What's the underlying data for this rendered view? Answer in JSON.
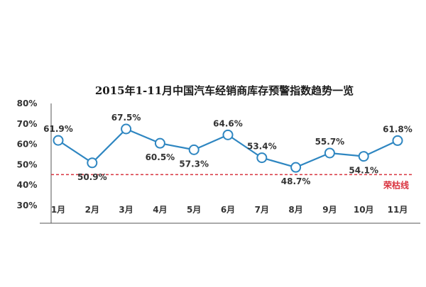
{
  "chart_data": {
    "type": "line",
    "title": "2015年1-11月中国汽车经销商库存预警指数趋势一览",
    "categories": [
      "1月",
      "2月",
      "3月",
      "4月",
      "5月",
      "6月",
      "7月",
      "8月",
      "9月",
      "10月",
      "11月"
    ],
    "values": [
      61.9,
      50.9,
      67.5,
      60.5,
      57.3,
      64.6,
      53.4,
      48.7,
      55.7,
      54.1,
      61.8
    ],
    "data_labels": [
      "61.9%",
      "50.9%",
      "67.5%",
      "60.5%",
      "57.3%",
      "64.6%",
      "53.4%",
      "48.7%",
      "55.7%",
      "54.1%",
      "61.8%"
    ],
    "y_ticks": [
      "80%",
      "70%",
      "60%",
      "50%",
      "40%",
      "30%"
    ],
    "ylim": [
      30,
      80
    ],
    "grid": false,
    "reference_line": {
      "label": "荣枯线",
      "value": 50,
      "color": "#d9333f"
    },
    "colors": {
      "line": "#2e86c1",
      "marker_fill": "#ffffff",
      "axis": "#555555"
    }
  }
}
